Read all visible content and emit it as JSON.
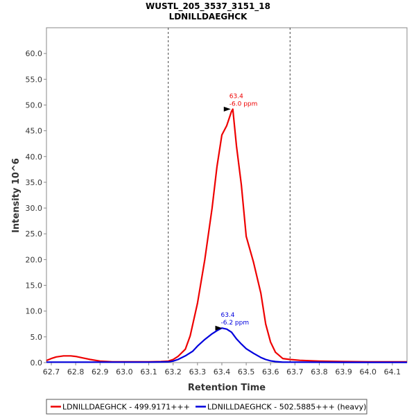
{
  "chart_data": {
    "type": "line",
    "title": "WUSTL_205_3537_3151_18",
    "subtitle": "LDNILLDAEGHCK",
    "xlabel": "Retention Time",
    "ylabel": "Intensity 10^6",
    "xlim": [
      62.68,
      64.16
    ],
    "ylim": [
      0,
      65
    ],
    "x_ticks": [
      "62.7",
      "62.8",
      "62.9",
      "63.0",
      "63.1",
      "63.2",
      "63.3",
      "63.4",
      "63.5",
      "63.6",
      "63.7",
      "63.8",
      "63.9",
      "64.0",
      "64.1"
    ],
    "y_ticks": [
      "0.0",
      "5.0",
      "10.0",
      "15.0",
      "20.0",
      "25.0",
      "30.0",
      "35.0",
      "40.0",
      "45.0",
      "50.0",
      "55.0",
      "60.0"
    ],
    "boundaries": [
      63.18,
      63.68
    ],
    "series": [
      {
        "name": "LDNILLDAEGHCK - 499.9171+++",
        "color": "#ee0000",
        "x": [
          62.68,
          62.7,
          62.72,
          62.75,
          62.78,
          62.8,
          62.83,
          62.86,
          62.9,
          62.95,
          63.0,
          63.05,
          63.1,
          63.15,
          63.18,
          63.2,
          63.22,
          63.25,
          63.27,
          63.3,
          63.33,
          63.36,
          63.38,
          63.4,
          63.42,
          63.44,
          63.445,
          63.46,
          63.48,
          63.5,
          63.53,
          63.56,
          63.58,
          63.6,
          63.62,
          63.65,
          63.68,
          63.72,
          63.8,
          63.9,
          64.0,
          64.1,
          64.16
        ],
        "y": [
          0.4,
          0.8,
          1.1,
          1.3,
          1.3,
          1.2,
          0.9,
          0.6,
          0.3,
          0.15,
          0.15,
          0.15,
          0.15,
          0.2,
          0.3,
          0.6,
          1.2,
          2.6,
          5.2,
          11.5,
          20,
          30,
          38,
          44.2,
          46,
          48.8,
          49.2,
          42,
          34.5,
          24.5,
          19.5,
          13.5,
          7.5,
          4.0,
          2.0,
          0.8,
          0.6,
          0.45,
          0.3,
          0.2,
          0.15,
          0.15,
          0.15
        ]
      },
      {
        "name": "LDNILLDAEGHCK - 502.5885+++ (heavy)",
        "color": "#0000dd",
        "x": [
          62.68,
          62.8,
          62.9,
          63.0,
          63.1,
          63.18,
          63.2,
          63.22,
          63.25,
          63.28,
          63.3,
          63.33,
          63.36,
          63.38,
          63.4,
          63.42,
          63.44,
          63.46,
          63.48,
          63.5,
          63.53,
          63.56,
          63.58,
          63.6,
          63.62,
          63.65,
          63.68,
          63.75,
          63.9,
          64.16
        ],
        "y": [
          0.1,
          0.1,
          0.1,
          0.1,
          0.1,
          0.15,
          0.3,
          0.6,
          1.3,
          2.2,
          3.2,
          4.5,
          5.6,
          6.2,
          6.7,
          6.5,
          5.9,
          4.6,
          3.6,
          2.7,
          1.8,
          1.0,
          0.6,
          0.35,
          0.2,
          0.1,
          0.1,
          0.08,
          0.05,
          0.05
        ]
      }
    ],
    "annotations": [
      {
        "series": 0,
        "x": 63.445,
        "y": 49.2,
        "time": "63.4",
        "ppm": "-6.0 ppm",
        "color": "#ee0000"
      },
      {
        "series": 1,
        "x": 63.41,
        "y": 6.7,
        "time": "63.4",
        "ppm": "-6.2 ppm",
        "color": "#0000dd"
      }
    ],
    "legend_position": "bottom"
  }
}
